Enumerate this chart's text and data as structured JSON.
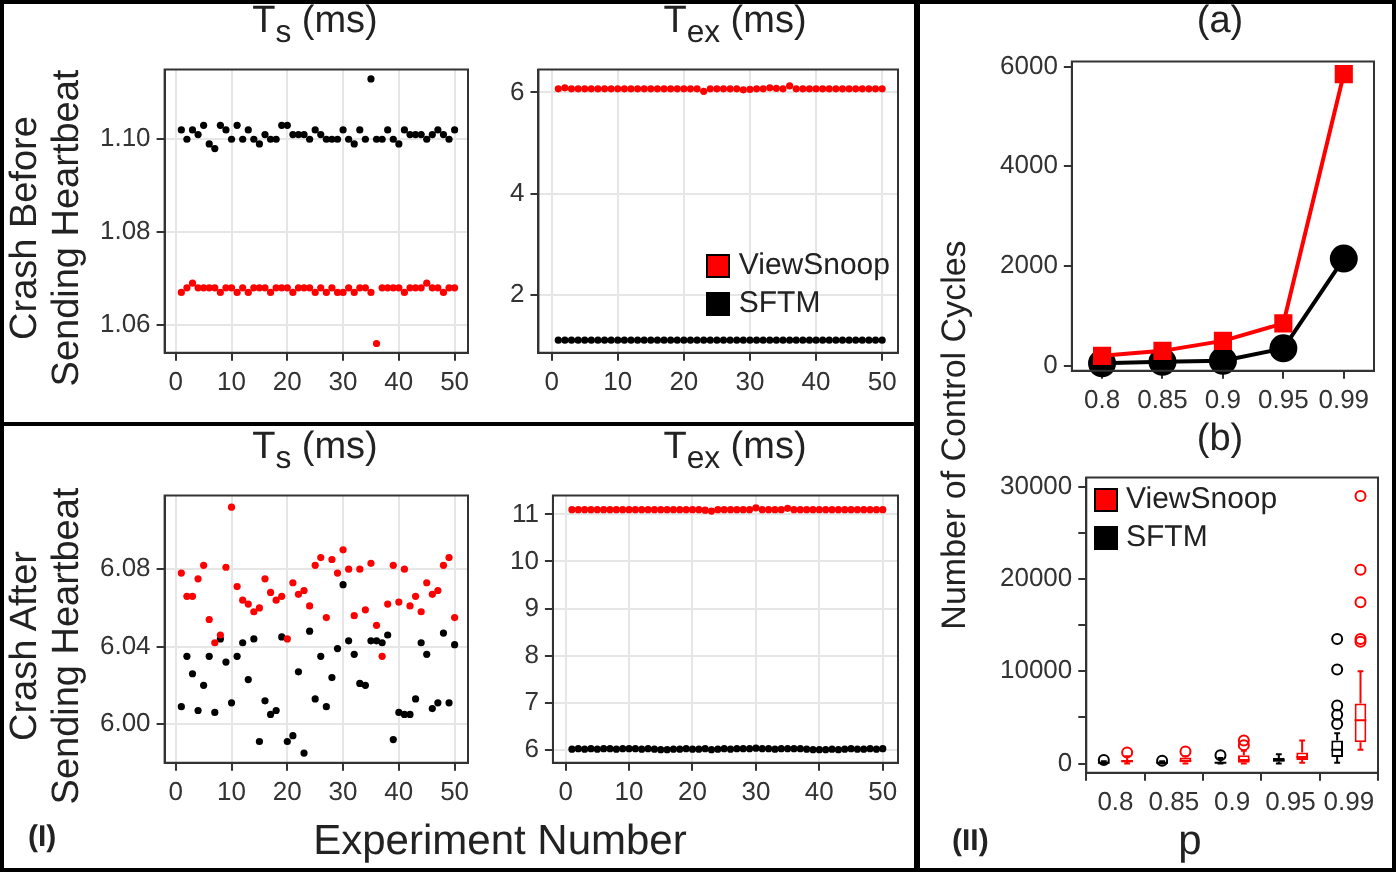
{
  "chart_data": [
    {
      "type": "scatter",
      "title": "T$_{s}$ (ms)",
      "ylabel": "Crash Before Sending Heartbeat",
      "marker": "circle",
      "grid": true,
      "x": [
        1,
        2,
        3,
        4,
        5,
        6,
        7,
        8,
        9,
        10,
        11,
        12,
        13,
        14,
        15,
        16,
        17,
        18,
        19,
        20,
        21,
        22,
        23,
        24,
        25,
        26,
        27,
        28,
        29,
        30,
        31,
        32,
        33,
        34,
        35,
        36,
        37,
        38,
        39,
        40,
        41,
        42,
        43,
        44,
        45,
        46,
        47,
        48,
        49,
        50
      ],
      "xlim": [
        -2,
        52.4
      ],
      "xticks": [
        0,
        10,
        20,
        30,
        40,
        50
      ],
      "ylim": [
        1.054,
        1.115
      ],
      "yticks": [
        1.06,
        1.08,
        {
          "value": 1.1,
          "label": "1.10"
        }
      ],
      "series": [
        {
          "color": "#000000",
          "values": [
            1.102,
            1.1,
            1.102,
            1.101,
            1.103,
            1.099,
            1.098,
            1.103,
            1.102,
            1.1,
            1.103,
            1.1,
            1.102,
            1.1,
            1.099,
            1.101,
            1.1,
            1.1,
            1.103,
            1.103,
            1.101,
            1.101,
            1.101,
            1.1,
            1.102,
            1.101,
            1.1,
            1.1,
            1.1,
            1.102,
            1.1,
            1.099,
            1.102,
            1.1,
            1.113,
            1.1,
            1.1,
            1.102,
            1.1,
            1.099,
            1.102,
            1.101,
            1.101,
            1.101,
            1.1,
            1.101,
            1.102,
            1.101,
            1.1,
            1.102
          ]
        },
        {
          "color": "#ff0000",
          "values": [
            1.067,
            1.068,
            1.069,
            1.068,
            1.068,
            1.068,
            1.068,
            1.067,
            1.068,
            1.068,
            1.067,
            1.068,
            1.067,
            1.068,
            1.068,
            1.068,
            1.067,
            1.068,
            1.068,
            1.068,
            1.067,
            1.068,
            1.068,
            1.068,
            1.067,
            1.068,
            1.067,
            1.068,
            1.067,
            1.067,
            1.068,
            1.067,
            1.068,
            1.068,
            1.067,
            1.056,
            1.068,
            1.068,
            1.068,
            1.068,
            1.067,
            1.068,
            1.068,
            1.068,
            1.069,
            1.068,
            1.068,
            1.067,
            1.068,
            1.068
          ]
        }
      ]
    },
    {
      "type": "scatter",
      "title": "T$_{ex}$ (ms)",
      "marker": "circle",
      "grid": true,
      "legend": "right",
      "x": [
        1,
        2,
        3,
        4,
        5,
        6,
        7,
        8,
        9,
        10,
        11,
        12,
        13,
        14,
        15,
        16,
        17,
        18,
        19,
        20,
        21,
        22,
        23,
        24,
        25,
        26,
        27,
        28,
        29,
        30,
        31,
        32,
        33,
        34,
        35,
        36,
        37,
        38,
        39,
        40,
        41,
        42,
        43,
        44,
        45,
        46,
        47,
        48,
        49,
        50
      ],
      "xlim": [
        -2,
        52.4
      ],
      "xticks": [
        0,
        10,
        20,
        30,
        40,
        50
      ],
      "ylim": [
        0.85,
        6.45
      ],
      "yticks": [
        2,
        4,
        6
      ],
      "series": [
        {
          "name": "ViewSnoop",
          "color": "#ff0000",
          "values": [
            6.07,
            6.09,
            6.07,
            6.07,
            6.07,
            6.07,
            6.07,
            6.07,
            6.07,
            6.07,
            6.07,
            6.07,
            6.07,
            6.07,
            6.07,
            6.07,
            6.07,
            6.07,
            6.07,
            6.07,
            6.07,
            6.07,
            6.02,
            6.07,
            6.07,
            6.07,
            6.07,
            6.07,
            6.05,
            6.06,
            6.07,
            6.07,
            6.09,
            6.08,
            6.07,
            6.13,
            6.07,
            6.07,
            6.07,
            6.07,
            6.07,
            6.07,
            6.07,
            6.07,
            6.07,
            6.07,
            6.07,
            6.07,
            6.07,
            6.07
          ]
        },
        {
          "name": "SFTM",
          "color": "#000000",
          "values": [
            1.1,
            1.1,
            1.1,
            1.1,
            1.1,
            1.1,
            1.1,
            1.1,
            1.1,
            1.1,
            1.1,
            1.1,
            1.1,
            1.1,
            1.1,
            1.1,
            1.1,
            1.1,
            1.1,
            1.1,
            1.1,
            1.1,
            1.1,
            1.1,
            1.1,
            1.1,
            1.1,
            1.1,
            1.1,
            1.1,
            1.1,
            1.1,
            1.1,
            1.1,
            1.1,
            1.1,
            1.1,
            1.1,
            1.1,
            1.1,
            1.1,
            1.1,
            1.1,
            1.1,
            1.1,
            1.1,
            1.1,
            1.1,
            1.1,
            1.1
          ]
        }
      ]
    },
    {
      "type": "scatter",
      "title": "T$_{s}$ (ms)",
      "ylabel": "Crash After Sending Heartbeat",
      "xlabel": "Experiment Number",
      "annotations": [
        "(I)"
      ],
      "marker": "circle",
      "grid": true,
      "x": [
        1,
        2,
        3,
        4,
        5,
        6,
        7,
        8,
        9,
        10,
        11,
        12,
        13,
        14,
        15,
        16,
        17,
        18,
        19,
        20,
        21,
        22,
        23,
        24,
        25,
        26,
        27,
        28,
        29,
        30,
        31,
        32,
        33,
        34,
        35,
        36,
        37,
        38,
        39,
        40,
        41,
        42,
        43,
        44,
        45,
        46,
        47,
        48,
        49,
        50
      ],
      "xlim": [
        -2,
        52.4
      ],
      "xticks": [
        0,
        10,
        20,
        30,
        40,
        50
      ],
      "ylim": [
        5.98,
        6.118
      ],
      "yticks": [
        {
          "value": 6,
          "label": "6.00"
        },
        6.04,
        6.08
      ],
      "series": [
        {
          "color": "#ff0000",
          "values": [
            6.078,
            6.066,
            6.066,
            6.075,
            6.082,
            6.054,
            6.042,
            6.046,
            6.081,
            6.112,
            6.071,
            6.064,
            6.062,
            6.058,
            6.06,
            6.075,
            6.068,
            6.064,
            6.066,
            6.044,
            6.073,
            6.067,
            6.069,
            6.061,
            6.082,
            6.086,
            6.055,
            6.085,
            6.078,
            6.09,
            6.08,
            6.056,
            6.08,
            6.059,
            6.083,
            6.051,
            6.035,
            6.062,
            6.082,
            6.063,
            6.08,
            6.061,
            6.066,
            6.058,
            6.073,
            6.067,
            6.069,
            6.082,
            6.086,
            6.055
          ]
        },
        {
          "color": "#000000",
          "values": [
            6.009,
            6.035,
            6.026,
            6.007,
            6.02,
            6.035,
            6.006,
            6.044,
            6.032,
            6.011,
            6.035,
            6.042,
            6.023,
            6.044,
            5.991,
            6.012,
            6.005,
            6.007,
            6.045,
            5.991,
            5.994,
            6.027,
            5.985,
            6.048,
            6.013,
            6.035,
            6.009,
            6.024,
            6.039,
            6.072,
            6.043,
            6.036,
            6.021,
            6.02,
            6.043,
            6.043,
            6.042,
            6.046,
            5.992,
            6.006,
            6.005,
            6.005,
            6.013,
            6.042,
            6.036,
            6.008,
            6.011,
            6.047,
            6.011,
            6.041
          ]
        }
      ]
    },
    {
      "type": "scatter",
      "title": "T$_{ex}$ (ms)",
      "marker": "circle",
      "grid": true,
      "x": [
        1,
        2,
        3,
        4,
        5,
        6,
        7,
        8,
        9,
        10,
        11,
        12,
        13,
        14,
        15,
        16,
        17,
        18,
        19,
        20,
        21,
        22,
        23,
        24,
        25,
        26,
        27,
        28,
        29,
        30,
        31,
        32,
        33,
        34,
        35,
        36,
        37,
        38,
        39,
        40,
        41,
        42,
        43,
        44,
        45,
        46,
        47,
        48,
        49,
        50
      ],
      "xlim": [
        -2,
        52.4
      ],
      "xticks": [
        0,
        10,
        20,
        30,
        40,
        50
      ],
      "ylim": [
        5.72,
        11.4
      ],
      "yticks": [
        6,
        7,
        8,
        9,
        10,
        11
      ],
      "series": [
        {
          "color": "#ff0000",
          "values": [
            11.1,
            11.1,
            11.1,
            11.1,
            11.1,
            11.1,
            11.1,
            11.1,
            11.1,
            11.1,
            11.1,
            11.1,
            11.1,
            11.1,
            11.1,
            11.1,
            11.1,
            11.1,
            11.1,
            11.1,
            11.1,
            11.09,
            11.07,
            11.1,
            11.1,
            11.1,
            11.1,
            11.1,
            11.1,
            11.14,
            11.1,
            11.1,
            11.1,
            11.1,
            11.13,
            11.1,
            11.1,
            11.1,
            11.1,
            11.1,
            11.1,
            11.1,
            11.1,
            11.1,
            11.1,
            11.1,
            11.1,
            11.1,
            11.1,
            11.1
          ]
        },
        {
          "color": "#000000",
          "values": [
            6.01,
            6.02,
            6.01,
            6.02,
            6.01,
            6.02,
            6.02,
            6.01,
            6.02,
            6.02,
            6.02,
            6.01,
            6.02,
            6.01,
            6,
            6,
            6.01,
            6.01,
            6.02,
            6.01,
            6.01,
            6.02,
            6,
            6.01,
            6.02,
            6.01,
            6.02,
            6.02,
            6.02,
            6.03,
            6.02,
            6.02,
            6.01,
            6.02,
            6.02,
            6.02,
            6.02,
            6.01,
            6,
            6,
            6,
            6.01,
            6,
            6.01,
            6.02,
            6.01,
            6.01,
            6.02,
            6.01,
            6.02
          ]
        }
      ]
    },
    {
      "type": "line",
      "title": "(a)",
      "ylabel": "Number of Control Cycles",
      "categories": [
        "0.8",
        "0.85",
        "0.9",
        "0.95",
        "0.99"
      ],
      "ylim": [
        -100,
        6100
      ],
      "yticks": [
        0,
        2000,
        4000,
        6000
      ],
      "series": [
        {
          "color": "#ff0000",
          "marker": "square",
          "values": [
            200,
            300,
            500,
            850,
            5850
          ]
        },
        {
          "color": "#000000",
          "marker": "circle",
          "values": [
            50,
            80,
            100,
            350,
            2150
          ]
        }
      ]
    },
    {
      "type": "box",
      "title": "(b)",
      "xlabel": "p",
      "annotations": [
        "(II)"
      ],
      "legend": "top left",
      "categories": [
        "0.8",
        "0.85",
        "0.9",
        "0.95",
        "0.99"
      ],
      "ylim": [
        -1000,
        31000
      ],
      "yticks": [
        0,
        {
          "value": 5000,
          "label": null
        },
        10000,
        {
          "value": 15000,
          "label": null
        },
        20000,
        {
          "value": 25000,
          "label": null
        },
        30000
      ],
      "series": [
        {
          "name": "SFTM",
          "color": "#000000",
          "boxes": [
            {
              "low": 0,
              "q1": 50,
              "median": 80,
              "q3": 120,
              "high": 250,
              "outliers": [
                400
              ]
            },
            {
              "low": 0,
              "q1": 50,
              "median": 80,
              "q3": 150,
              "high": 250,
              "outliers": [
                300
              ]
            },
            {
              "low": 0,
              "q1": 30,
              "median": 100,
              "q3": 200,
              "high": 600,
              "outliers": [
                900
              ]
            },
            {
              "low": 0,
              "q1": 200,
              "median": 350,
              "q3": 600,
              "high": 1000
            },
            {
              "low": 100,
              "q1": 700,
              "median": 1500,
              "q3": 2500,
              "high": 3300,
              "outliers": [
                4300,
                5300,
                6300,
                10200,
                13500
              ]
            }
          ]
        },
        {
          "name": "ViewSnoop",
          "color": "#ff0000",
          "boxes": [
            {
              "low": 0,
              "q1": 150,
              "median": 250,
              "q3": 400,
              "high": 800,
              "outliers": [
                1200
              ]
            },
            {
              "low": 0,
              "q1": 150,
              "median": 300,
              "q3": 650,
              "high": 800,
              "outliers": [
                1300
              ]
            },
            {
              "low": 0,
              "q1": 100,
              "median": 400,
              "q3": 900,
              "high": 1400,
              "outliers": [
                2000,
                2500
              ]
            },
            {
              "low": 100,
              "q1": 400,
              "median": 700,
              "q3": 1200,
              "high": 2500
            },
            {
              "low": 1500,
              "q1": 2300,
              "median": 4700,
              "q3": 6500,
              "high": 10000,
              "outliers": [
                13200,
                13500,
                17500,
                21000,
                29000
              ]
            }
          ]
        }
      ]
    }
  ]
}
